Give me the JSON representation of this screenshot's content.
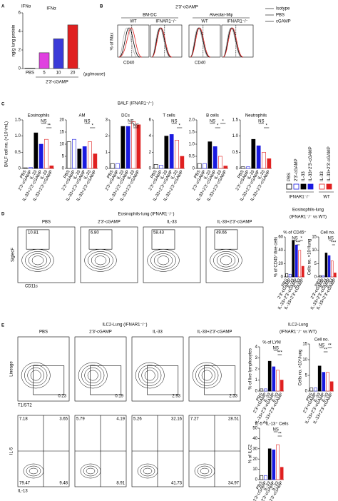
{
  "panel_a": {
    "letter": "A",
    "title": "IFNα",
    "ylabel": "ng/g lung protein",
    "yticks": [
      0,
      2,
      4,
      6
    ],
    "ylim": [
      0,
      6
    ],
    "categories": [
      "PBS",
      "5",
      "10",
      "20"
    ],
    "values": [
      0.05,
      1.7,
      3.2,
      4.7
    ],
    "colors": [
      "#ffffff",
      "#e040e0",
      "#3a3ad8",
      "#e02020"
    ],
    "xlabel": "2'3'-cGAMP",
    "unit": "(µg/mouse)"
  },
  "panel_b": {
    "letter": "B",
    "title": "2'3'-cGAMP",
    "cells": [
      "BM-DC",
      "Alveolar-Mφ"
    ],
    "genotypes": [
      "WT",
      "IFNAR1⁻/⁻"
    ],
    "ylabel": "% of Max",
    "xlabel": "CD40",
    "legend": [
      {
        "name": "Isotype",
        "color": "#aaaaaa"
      },
      {
        "name": "PBS",
        "color": "#000000"
      },
      {
        "name": "cGAMP",
        "color": "#e02020"
      }
    ]
  },
  "groups": {
    "labels": [
      "PBS",
      "2'3'-cGAMP",
      "IL-33",
      "IL-33+2'3'-cGAMP",
      "IL-33",
      "IL-33+2'3'-cGAMP"
    ],
    "fills": [
      "#ffffff",
      "#ffffff",
      "#000000",
      "#1a1ae0",
      "#ffffff",
      "#e02020"
    ],
    "strokes": [
      "#000000",
      "#1a1ae0",
      "#000000",
      "#1a1ae0",
      "#e02020",
      "#e02020"
    ],
    "genotypes": [
      "IFNAR1⁻/⁻",
      "WT"
    ]
  },
  "panel_c": {
    "letter": "C",
    "title": "BALF (IFNAR1⁻/⁻)",
    "ylabel": "BALF cell no. (×10⁴/mL)",
    "charts": [
      {
        "title": "Eosinophils",
        "ylim": [
          0,
          1.5
        ],
        "yticks": [
          0,
          0.5,
          {
            "value": 1,
            "label": "1.0"
          },
          1.5
        ],
        "values": [
          0.02,
          0.03,
          1.1,
          0.75,
          0.9,
          0.08
        ],
        "sig": [
          "NS",
          "**"
        ]
      },
      {
        "title": "AM",
        "ylim": [
          0,
          20
        ],
        "yticks": [
          0,
          5,
          10,
          15,
          20
        ],
        "values": [
          11,
          12,
          8,
          9,
          11,
          6
        ],
        "sig": [
          "NS",
          "*"
        ]
      },
      {
        "title": "DCs",
        "ylim": [
          0,
          3
        ],
        "yticks": [
          0,
          1,
          2,
          3
        ],
        "values": [
          0.3,
          0.3,
          2.6,
          2.6,
          2.9,
          2.7
        ],
        "sig": [
          "NS",
          "NS"
        ]
      },
      {
        "title": "T cells",
        "ylim": [
          0,
          6
        ],
        "yticks": [
          0,
          2,
          4,
          6
        ],
        "values": [
          0.5,
          0.4,
          4,
          4.2,
          3.5,
          1.5
        ],
        "sig": [
          "NS",
          "*"
        ]
      },
      {
        "title": "B cells",
        "ylim": [
          0,
          2
        ],
        "yticks": [
          0,
          0.5,
          {
            "value": 1,
            "label": "1.0"
          },
          1.5,
          {
            "value": 2,
            "label": "2.0"
          }
        ],
        "values": [
          0.2,
          0.2,
          1.1,
          0.9,
          0.5,
          0.1
        ],
        "sig": [
          "NS",
          "*",
          "*"
        ]
      },
      {
        "title": "Neutrophils",
        "ylim": [
          0,
          1.5
        ],
        "yticks": [
          0,
          0.5,
          {
            "value": 1,
            "label": "1.0"
          },
          1.5
        ],
        "values": [
          0.05,
          0.05,
          0.9,
          0.7,
          0.5,
          0.3
        ],
        "sig": [
          "NS",
          "*"
        ]
      }
    ]
  },
  "panel_d": {
    "letter": "D",
    "title": "Eosinophils-lung (IFNAR1⁻/⁻)",
    "plots": [
      {
        "title": "PBS",
        "gate": "10.81"
      },
      {
        "title": "2'3'-cGAMP",
        "gate": "6.80"
      },
      {
        "title": "IL-33",
        "gate": "58.43"
      },
      {
        "title": "IL-33+2'3'-cGAMP",
        "gate": "49.66"
      }
    ],
    "xlabel": "CD11c",
    "ylabel": "SiglecF",
    "summary_title": "Eosinophils-lung",
    "summary_subtitle": "(IFNAR1⁻/⁻ vs WT)",
    "charts": [
      {
        "title": "% of CD45⁺",
        "ylabel": "% of CD45⁺/live cells",
        "ylim": [
          0,
          60
        ],
        "yticks": [
          0,
          20,
          40,
          60
        ],
        "values": [
          5,
          4,
          55,
          48,
          40,
          16
        ],
        "sig": [
          "NS",
          "***",
          "*"
        ]
      },
      {
        "title": "Cell no.",
        "ylabel": "Cells no. ×10⁴/lung",
        "ylim": [
          0,
          15
        ],
        "yticks": [
          0,
          5,
          10,
          15
        ],
        "values": [
          0.5,
          0.5,
          9,
          8,
          6,
          1.5
        ],
        "sig": [
          "NS",
          "***"
        ]
      }
    ]
  },
  "panel_e": {
    "letter": "E",
    "title": "ILC2-Lung (IFNAR1⁻/⁻)",
    "plots": [
      {
        "title": "PBS",
        "gate": "0.23",
        "tl": "7.18",
        "tr": "3.65",
        "bl": "79.47",
        "br": "9.48"
      },
      {
        "title": "2'3'-cGAMP",
        "gate": "0.19",
        "tl": "5.79",
        "tr": "4.19",
        "br": "8.91"
      },
      {
        "title": "IL-33",
        "gate": "2.93",
        "tl": "5.26",
        "tr": "32.16",
        "br": "41.73"
      },
      {
        "title": "IL-33+2'3'-cGAMP",
        "gate": "2.33",
        "tl": "7.27",
        "tr": "28.51",
        "br": "34.97"
      }
    ],
    "top_xlabel": "T1/ST2",
    "top_ylabel": "Lineage",
    "bottom_xlabel": "IL-13",
    "bottom_ylabel": "IL-5",
    "summary_title": "ILC2-Lung",
    "summary_subtitle": "(IFNAR1⁻/⁻ vs WT)",
    "charts": [
      {
        "title": "% of LYM",
        "ylabel": "% of live lymphocytes",
        "ylim": [
          0,
          4
        ],
        "yticks": [
          0,
          1,
          2,
          3,
          4
        ],
        "values": [
          0.2,
          0.2,
          2.7,
          2.2,
          1.9,
          1.0
        ],
        "sig": [
          "NS",
          "***"
        ]
      },
      {
        "title": "Cell no.",
        "ylabel": "Cells no. ×10⁴/lung",
        "ylim": [
          0,
          15
        ],
        "yticks": [
          0,
          5,
          10,
          15
        ],
        "values": [
          1,
          1,
          8,
          6,
          6,
          3
        ],
        "sig": [
          "NS",
          "**",
          "**"
        ]
      },
      {
        "title": "IL-5⁺ IL-13⁺ Cells",
        "ylabel": "% of ILC2",
        "ylim": [
          0,
          50
        ],
        "yticks": [
          0,
          10,
          20,
          30,
          40,
          50
        ],
        "values": [
          4,
          4,
          30,
          29,
          34,
          12
        ],
        "sig": [
          "NS",
          "**"
        ]
      }
    ]
  }
}
